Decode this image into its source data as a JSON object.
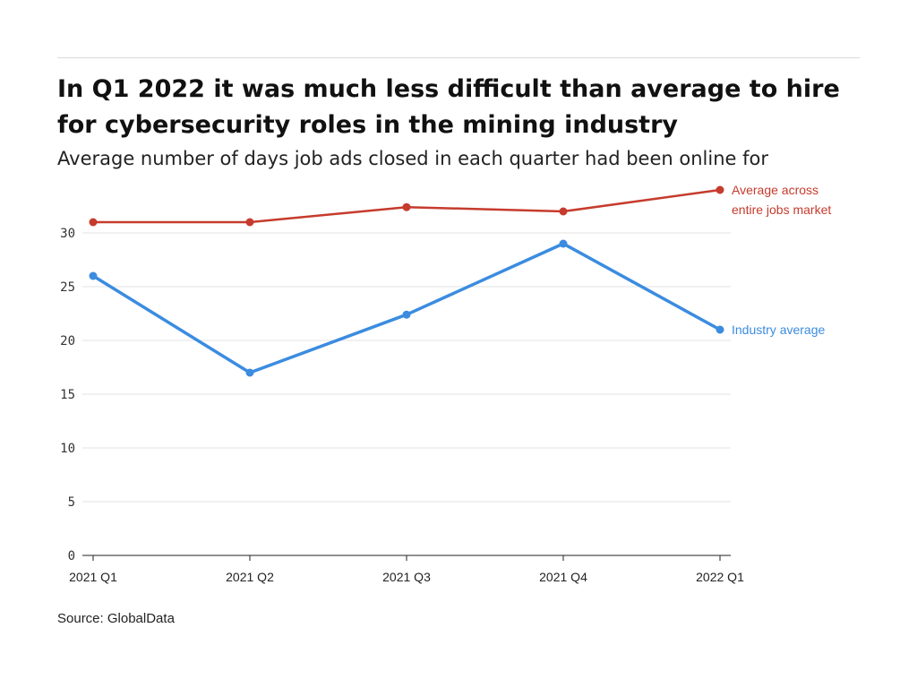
{
  "title": "In Q1 2022 it was much less difficult than average to hire for cybersecurity roles in the mining industry",
  "subtitle": "Average number of days job ads closed in each quarter had been online for",
  "source": "Source: GlobalData",
  "chart_data": {
    "type": "line",
    "title": "In Q1 2022 it was much less difficult than average to hire for cybersecurity roles in the mining industry",
    "subtitle": "Average number of days job ads closed in each quarter had been online for",
    "xlabel": "",
    "ylabel": "",
    "categories": [
      "2021 Q1",
      "2021 Q2",
      "2021 Q3",
      "2021 Q4",
      "2022 Q1"
    ],
    "ylim": [
      0,
      30
    ],
    "yticks": [
      0,
      5,
      10,
      15,
      20,
      25,
      30
    ],
    "grid": true,
    "legend": "direct labels at right end of lines",
    "series": [
      {
        "name": "Average across entire jobs market",
        "label_lines": [
          "Average across",
          "entire jobs market"
        ],
        "color": "#c63b2d",
        "values": [
          31,
          31,
          32.4,
          32,
          34
        ]
      },
      {
        "name": "Industry average",
        "label_lines": [
          "Industry average"
        ],
        "color": "#3b8ce0",
        "values": [
          26,
          17,
          22.4,
          29,
          21
        ]
      }
    ]
  }
}
